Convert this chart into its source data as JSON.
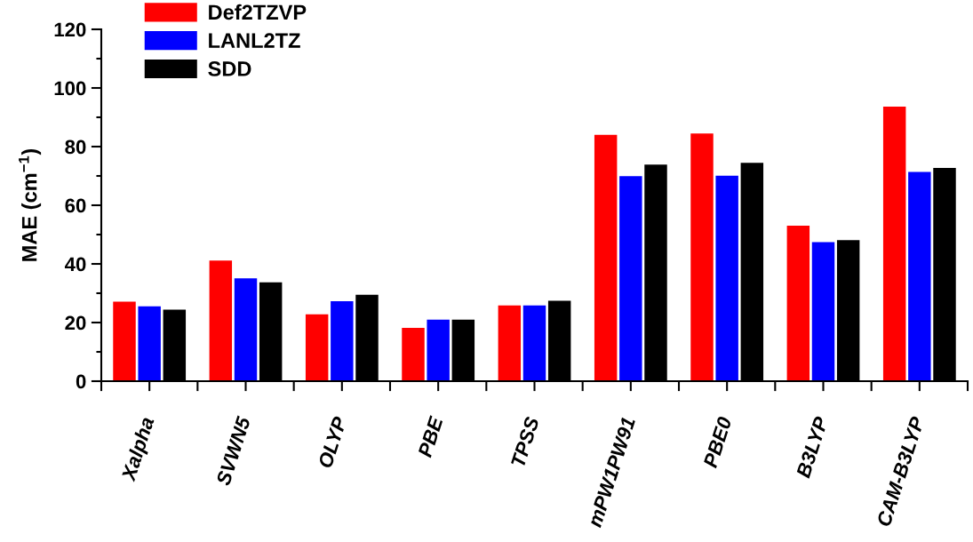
{
  "chart_data": {
    "type": "bar",
    "categories": [
      "Xalpha",
      "SVWN5",
      "OLYP",
      "PBE",
      "TPSS",
      "mPW1PW91",
      "PBE0",
      "B3LYP",
      "CAM-B3LYP"
    ],
    "series": [
      {
        "name": "Def2TZVP",
        "color": "#ff0000",
        "values": [
          27.1,
          41.1,
          22.8,
          18.2,
          25.8,
          84.0,
          84.5,
          53.0,
          93.6
        ]
      },
      {
        "name": "LANL2TZ",
        "color": "#0000ff",
        "values": [
          25.5,
          35.1,
          27.3,
          21.0,
          25.8,
          69.9,
          70.1,
          47.4,
          71.4
        ]
      },
      {
        "name": "SDD",
        "color": "#000000",
        "values": [
          24.4,
          33.7,
          29.5,
          21.0,
          27.4,
          73.9,
          74.5,
          48.1,
          72.7
        ]
      }
    ],
    "ylabel": "MAE (cm$^{−1}$)",
    "ylim": [
      0,
      120
    ],
    "yticks": [
      0,
      {
        "value": 10,
        "label": null
      },
      20,
      {
        "value": 30,
        "label": null
      },
      40,
      {
        "value": 50,
        "label": null
      },
      60,
      {
        "value": 70,
        "label": null
      },
      80,
      {
        "value": 90,
        "label": null
      },
      100,
      {
        "value": 110,
        "label": null
      },
      120
    ],
    "legend": "top left"
  }
}
